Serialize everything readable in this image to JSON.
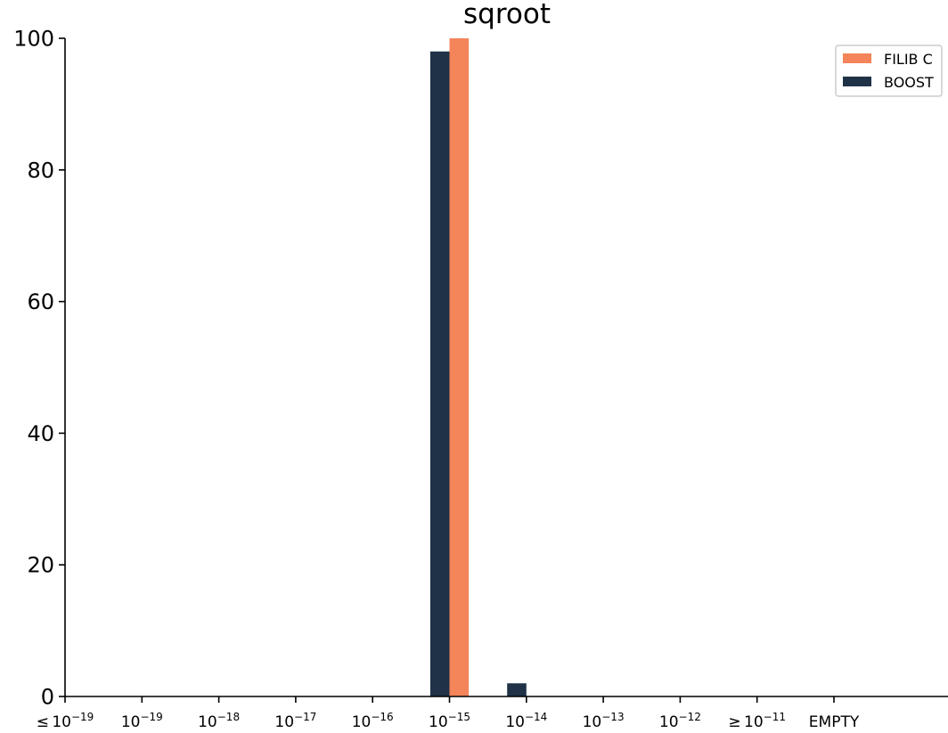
{
  "chart_data": {
    "type": "bar",
    "title": "sqroot",
    "xlabel": "",
    "ylabel": "",
    "ylim": [
      0,
      100
    ],
    "yticks": [
      "0",
      "20",
      "40",
      "60",
      "80",
      "100"
    ],
    "categories": [
      {
        "prefix": "≤",
        "base": "10",
        "exp": "−19"
      },
      {
        "prefix": "",
        "base": "10",
        "exp": "−19"
      },
      {
        "prefix": "",
        "base": "10",
        "exp": "−18"
      },
      {
        "prefix": "",
        "base": "10",
        "exp": "−17"
      },
      {
        "prefix": "",
        "base": "10",
        "exp": "−16"
      },
      {
        "prefix": "",
        "base": "10",
        "exp": "−15"
      },
      {
        "prefix": "",
        "base": "10",
        "exp": "−14"
      },
      {
        "prefix": "",
        "base": "10",
        "exp": "−13"
      },
      {
        "prefix": "",
        "base": "10",
        "exp": "−12"
      },
      {
        "prefix": "≥",
        "base": "10",
        "exp": "−11"
      },
      {
        "prefix": "",
        "base": "EMPTY",
        "exp": ""
      }
    ],
    "series": [
      {
        "name": "BOOST",
        "color": "#203247",
        "values": [
          0,
          0,
          0,
          0,
          0,
          98,
          2,
          0,
          0,
          0,
          0
        ]
      },
      {
        "name": "FILIB C",
        "color": "#f4845a",
        "values": [
          0,
          0,
          0,
          0,
          0,
          100,
          0,
          0,
          0,
          0,
          0
        ]
      }
    ],
    "legend": {
      "placement": "top-right",
      "entries": [
        "FILIB C",
        "BOOST"
      ]
    },
    "grid": false
  }
}
